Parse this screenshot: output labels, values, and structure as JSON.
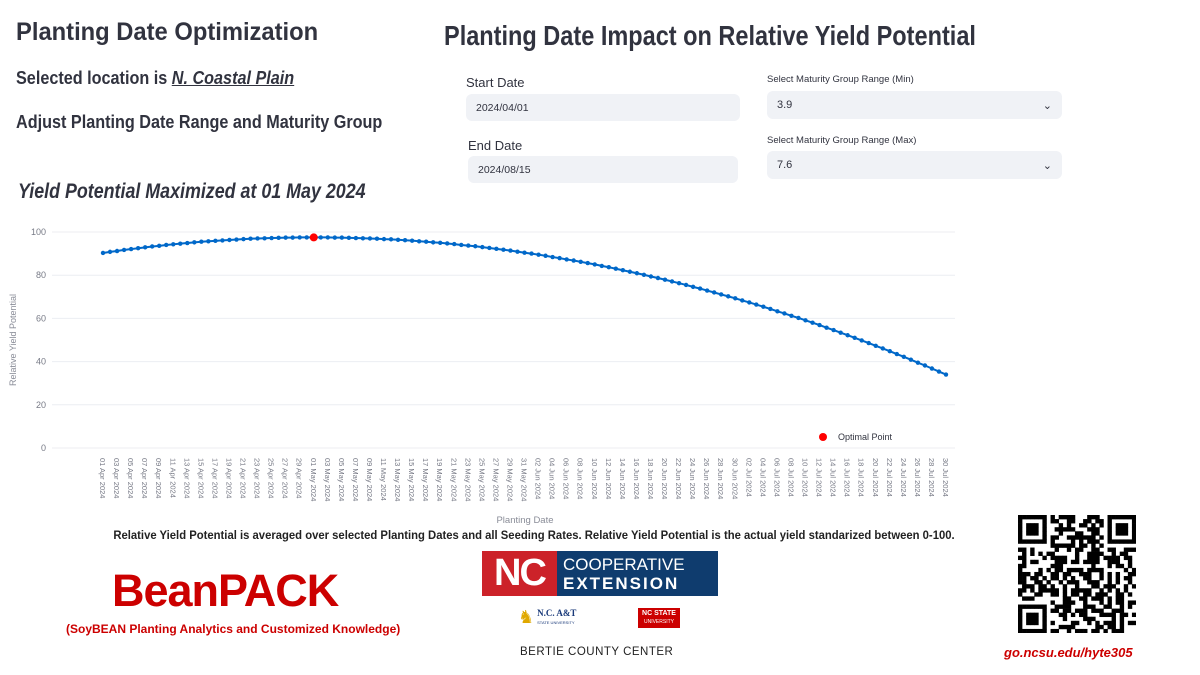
{
  "header": {
    "title": "Planting Date Optimization",
    "location_prefix": "Selected location is ",
    "location": "N. Coastal Plain",
    "instruction": "Adjust Planting Date Range and Maturity Group",
    "maximized": "Yield Potential Maximized at 01 May 2024"
  },
  "chart_title": "Planting Date Impact on Relative Yield Potential",
  "controls": {
    "start_date": {
      "label": "Start Date",
      "value": "2024/04/01"
    },
    "end_date": {
      "label": "End Date",
      "value": "2024/08/15"
    },
    "mg_min": {
      "label": "Select Maturity Group Range (Min)",
      "value": "3.9"
    },
    "mg_max": {
      "label": "Select Maturity Group Range (Max)",
      "value": "7.6"
    }
  },
  "chart_data": {
    "type": "line",
    "xlabel": "Planting Date",
    "ylabel": "Relative Yield Potential",
    "ylim": [
      0,
      100
    ],
    "yticks": [
      0,
      20,
      40,
      60,
      80,
      100
    ],
    "grid": true,
    "line_color": "#0068c9",
    "optimal_color": "#ff0000",
    "legend": {
      "label": "Optimal Point",
      "placement": "bottom-right"
    },
    "optimal": {
      "x": "01 May 2024",
      "y": 97.5
    },
    "x": [
      "01 Apr 2024",
      "02 Apr 2024",
      "03 Apr 2024",
      "04 Apr 2024",
      "05 Apr 2024",
      "06 Apr 2024",
      "07 Apr 2024",
      "08 Apr 2024",
      "09 Apr 2024",
      "10 Apr 2024",
      "11 Apr 2024",
      "12 Apr 2024",
      "13 Apr 2024",
      "14 Apr 2024",
      "15 Apr 2024",
      "16 Apr 2024",
      "17 Apr 2024",
      "18 Apr 2024",
      "19 Apr 2024",
      "20 Apr 2024",
      "21 Apr 2024",
      "22 Apr 2024",
      "23 Apr 2024",
      "24 Apr 2024",
      "25 Apr 2024",
      "26 Apr 2024",
      "27 Apr 2024",
      "28 Apr 2024",
      "29 Apr 2024",
      "30 Apr 2024",
      "01 May 2024",
      "02 May 2024",
      "03 May 2024",
      "04 May 2024",
      "05 May 2024",
      "06 May 2024",
      "07 May 2024",
      "08 May 2024",
      "09 May 2024",
      "10 May 2024",
      "11 May 2024",
      "12 May 2024",
      "13 May 2024",
      "14 May 2024",
      "15 May 2024",
      "16 May 2024",
      "17 May 2024",
      "18 May 2024",
      "19 May 2024",
      "20 May 2024",
      "21 May 2024",
      "22 May 2024",
      "23 May 2024",
      "24 May 2024",
      "25 May 2024",
      "26 May 2024",
      "27 May 2024",
      "28 May 2024",
      "29 May 2024",
      "30 May 2024",
      "31 May 2024",
      "01 Jun 2024",
      "02 Jun 2024",
      "03 Jun 2024",
      "04 Jun 2024",
      "05 Jun 2024",
      "06 Jun 2024",
      "07 Jun 2024",
      "08 Jun 2024",
      "09 Jun 2024",
      "10 Jun 2024",
      "11 Jun 2024",
      "12 Jun 2024",
      "13 Jun 2024",
      "14 Jun 2024",
      "15 Jun 2024",
      "16 Jun 2024",
      "17 Jun 2024",
      "18 Jun 2024",
      "19 Jun 2024",
      "20 Jun 2024",
      "21 Jun 2024",
      "22 Jun 2024",
      "23 Jun 2024",
      "24 Jun 2024",
      "25 Jun 2024",
      "26 Jun 2024",
      "27 Jun 2024",
      "28 Jun 2024",
      "29 Jun 2024",
      "30 Jun 2024",
      "01 Jul 2024",
      "02 Jul 2024",
      "03 Jul 2024",
      "04 Jul 2024",
      "05 Jul 2024",
      "06 Jul 2024",
      "07 Jul 2024",
      "08 Jul 2024",
      "09 Jul 2024",
      "10 Jul 2024",
      "11 Jul 2024",
      "12 Jul 2024",
      "13 Jul 2024",
      "14 Jul 2024",
      "15 Jul 2024",
      "16 Jul 2024",
      "17 Jul 2024",
      "18 Jul 2024",
      "19 Jul 2024",
      "20 Jul 2024",
      "21 Jul 2024",
      "22 Jul 2024",
      "23 Jul 2024",
      "24 Jul 2024",
      "25 Jul 2024",
      "26 Jul 2024",
      "27 Jul 2024",
      "28 Jul 2024",
      "29 Jul 2024",
      "30 Jul 2024"
    ],
    "values": [
      90.3,
      90.8,
      91.2,
      91.7,
      92.1,
      92.5,
      92.9,
      93.3,
      93.6,
      94.0,
      94.3,
      94.6,
      94.9,
      95.2,
      95.5,
      95.7,
      95.9,
      96.1,
      96.3,
      96.5,
      96.7,
      96.9,
      97.0,
      97.1,
      97.2,
      97.3,
      97.4,
      97.4,
      97.5,
      97.5,
      97.5,
      97.5,
      97.5,
      97.4,
      97.4,
      97.3,
      97.2,
      97.1,
      97.0,
      96.9,
      96.7,
      96.6,
      96.4,
      96.2,
      96.0,
      95.7,
      95.5,
      95.2,
      95.0,
      94.7,
      94.4,
      94.0,
      93.7,
      93.4,
      93.0,
      92.6,
      92.2,
      91.8,
      91.4,
      90.9,
      90.4,
      90.0,
      89.5,
      89.0,
      88.4,
      87.9,
      87.3,
      86.8,
      86.2,
      85.6,
      85.0,
      84.3,
      83.7,
      83.0,
      82.3,
      81.6,
      80.9,
      80.2,
      79.4,
      78.7,
      77.9,
      77.1,
      76.3,
      75.5,
      74.6,
      73.8,
      72.9,
      72.0,
      71.1,
      70.2,
      69.3,
      68.3,
      67.4,
      66.4,
      65.4,
      64.4,
      63.3,
      62.3,
      61.2,
      60.2,
      59.1,
      58.0,
      56.9,
      55.7,
      54.6,
      53.4,
      52.2,
      51.0,
      49.8,
      48.6,
      47.3,
      46.1,
      44.8,
      43.5,
      42.2,
      40.9,
      39.5,
      38.2,
      36.8,
      35.4,
      34.0
    ]
  },
  "footer": {
    "note": "Relative Yield Potential is averaged over selected Planting Dates and all Seeding Rates. Relative Yield Potential is the actual yield standarized between 0-100.",
    "brand": "BeanPACK",
    "brand_sub": "(SoyBEAN Planting Analytics and Customized Knowledge)",
    "ext_nc": "NC",
    "ext_line1": "COOPERATIVE",
    "ext_line2": "EXTENSION",
    "ncat": "N.C. A&T",
    "ncat_sub": "STATE UNIVERSITY",
    "ncstate": "NC STATE",
    "ncstate_sub": "UNIVERSITY",
    "center": "BERTIE COUNTY CENTER",
    "url": "go.ncsu.edu/hyte305",
    "colors": {
      "brand_red": "#cc0000",
      "ext_red": "#cc2229",
      "ext_blue": "#0f3c6e"
    }
  }
}
